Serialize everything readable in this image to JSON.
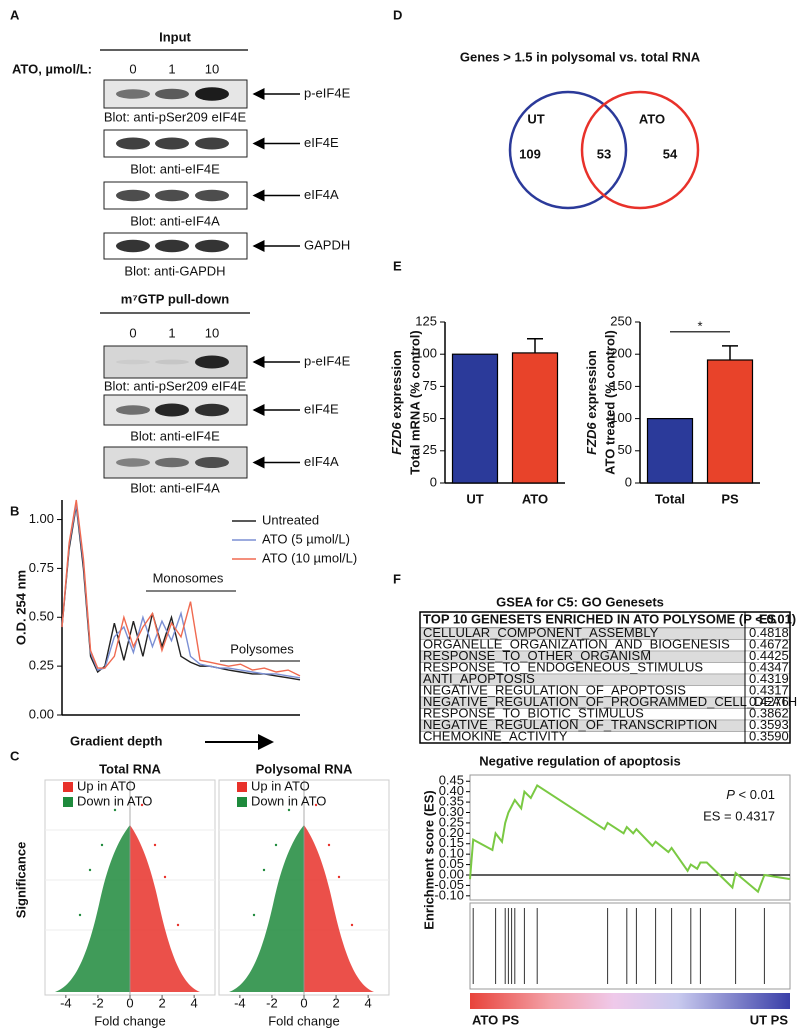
{
  "panel_labels": [
    "A",
    "B",
    "C",
    "D",
    "E",
    "F"
  ],
  "blots": {
    "input_title": "Input",
    "dose_label": "ATO, µmol/L:",
    "doses": [
      "0",
      "1",
      "10"
    ],
    "input": [
      {
        "target": "p-eIF4E",
        "caption": "Blot: anti-pSer209 eIF4E"
      },
      {
        "target": "eIF4E",
        "caption": "Blot: anti-eIF4E"
      },
      {
        "target": "eIF4A",
        "caption": "Blot: anti-eIF4A"
      },
      {
        "target": "GAPDH",
        "caption": "Blot: anti-GAPDH"
      }
    ],
    "pulldown_title": "m⁷GTP pull-down",
    "pulldown_doses": [
      "0",
      "1",
      "10"
    ],
    "pulldown": [
      {
        "target": "p-eIF4E",
        "caption": "Blot: anti-pSer209 eIF4E"
      },
      {
        "target": "eIF4E",
        "caption": "Blot: anti-eIF4E"
      },
      {
        "target": "eIF4A",
        "caption": "Blot: anti-eIF4A"
      }
    ]
  },
  "volcano": {
    "panels": [
      {
        "title": "Total RNA"
      },
      {
        "title": "Polysomal RNA"
      }
    ],
    "legend": [
      {
        "name": "Up in ATO",
        "color": "#e8312a"
      },
      {
        "name": "Down in ATO",
        "color": "#1e8a3c"
      }
    ],
    "ylabel": "Significance",
    "xlabel": "Fold change",
    "xlim": [
      -5.3,
      5.3
    ],
    "xticks": [
      -4,
      -2,
      0,
      2,
      4
    ]
  },
  "venn": {
    "title": "Genes > 1.5 in polysomal vs. total RNA",
    "sets": [
      {
        "name": "UT",
        "color": "#2b3a9a",
        "only": 109
      },
      {
        "name": "ATO",
        "color": "#e8312a",
        "only": 54
      }
    ],
    "both": 53
  },
  "gsea_table": {
    "title": "GSEA for C5: GO Genesets",
    "columns": [
      "TOP 10 GENESETS ENRICHED IN ATO POLYSOME (P < 0.01)",
      "ES"
    ],
    "rows": [
      {
        "name": "CELLULAR_COMPONENT_ASSEMBLY",
        "es": "0.4818",
        "color": "#222222"
      },
      {
        "name": "ORGANELLE_ORGANIZATION_AND_BIOGENESIS",
        "es": "0.4672",
        "color": "#222222"
      },
      {
        "name": "RESPONSE_TO_OTHER_ORGANISM",
        "es": "0.4425",
        "color": "#222222"
      },
      {
        "name": "RESPONSE_TO_ENDOGENEOUS_STIMULUS",
        "es": "0.4347",
        "color": "#222222"
      },
      {
        "name": "ANTI_APOPTOSIS",
        "es": "0.4319",
        "color": "#e8312a"
      },
      {
        "name": "NEGATIVE_REGULATION_OF_APOPTOSIS",
        "es": "0.4317",
        "color": "#e8312a"
      },
      {
        "name": "NEGATIVE_REGULATION_OF_PROGRAMMED_CELL_DEATH",
        "es": "0.4276",
        "color": "#e8312a"
      },
      {
        "name": "RESPONSE_TO_BIOTIC_STIMULUS",
        "es": "0.3862",
        "color": "#222222"
      },
      {
        "name": "NEGATIVE_REGULATION_OF_TRANSCRIPTION",
        "es": "0.3593",
        "color": "#222222"
      },
      {
        "name": "CHEMOKINE_ACTIVITY",
        "es": "0.3590",
        "color": "#222222"
      }
    ]
  },
  "chart_data": [
    {
      "type": "line",
      "ylabel": "O.D. 254 nm",
      "xlabel": "Gradient depth",
      "xlim": [
        0,
        1
      ],
      "ylim": [
        0,
        1.1
      ],
      "yticks": [
        {
          "value": 0,
          "label": "0.00"
        },
        0.25,
        {
          "value": 0.5,
          "label": "0.50"
        },
        0.75,
        {
          "value": 1,
          "label": "1.00"
        }
      ],
      "annotations": [
        "Monosomes",
        "Polysomes"
      ],
      "x": [
        0,
        0.03,
        0.06,
        0.09,
        0.12,
        0.15,
        0.18,
        0.22,
        0.26,
        0.3,
        0.34,
        0.38,
        0.42,
        0.46,
        0.5,
        0.54,
        0.58,
        0.62,
        0.66,
        0.7,
        0.75,
        0.8,
        0.85,
        0.9,
        0.95,
        1.0
      ],
      "series": [
        {
          "name": "Untreated",
          "color": "#222222",
          "values": [
            0.45,
            0.85,
            1.07,
            0.75,
            0.3,
            0.22,
            0.25,
            0.47,
            0.28,
            0.48,
            0.3,
            0.52,
            0.35,
            0.5,
            0.3,
            0.27,
            0.25,
            0.25,
            0.24,
            0.23,
            0.22,
            0.21,
            0.21,
            0.2,
            0.19,
            0.18
          ]
        },
        {
          "name": "ATO (5 µmol/L)",
          "color": "#7b8fd4",
          "values": [
            0.45,
            0.87,
            1.08,
            0.78,
            0.32,
            0.23,
            0.24,
            0.4,
            0.45,
            0.32,
            0.5,
            0.35,
            0.48,
            0.38,
            0.52,
            0.3,
            0.26,
            0.25,
            0.24,
            0.24,
            0.23,
            0.22,
            0.21,
            0.21,
            0.2,
            0.19
          ]
        },
        {
          "name": "ATO (10 µmol/L)",
          "color": "#f06a50",
          "values": [
            0.45,
            0.88,
            1.1,
            0.8,
            0.33,
            0.24,
            0.24,
            0.3,
            0.5,
            0.35,
            0.45,
            0.52,
            0.33,
            0.47,
            0.4,
            0.58,
            0.28,
            0.27,
            0.26,
            0.25,
            0.26,
            0.23,
            0.24,
            0.22,
            0.23,
            0.2
          ]
        }
      ]
    },
    {
      "type": "bar",
      "ylabel_italic": "FZD6",
      "ylabel": [
        "expression",
        "Total mRNA (% control)"
      ],
      "categories": [
        "UT",
        "ATO"
      ],
      "values": [
        100,
        101
      ],
      "errors": [
        null,
        11
      ],
      "colors": [
        "#2b3a9a",
        "#e8432a"
      ],
      "ylim": [
        0,
        125
      ],
      "yticks": [
        0,
        25,
        50,
        75,
        100,
        125
      ]
    },
    {
      "type": "bar",
      "ylabel_italic": "FZD6",
      "ylabel": [
        "expression",
        "ATO treated (% control)"
      ],
      "categories": [
        "Total",
        "PS"
      ],
      "values": [
        100,
        191
      ],
      "errors": [
        null,
        22
      ],
      "colors": [
        "#2b3a9a",
        "#e8432a"
      ],
      "ylim": [
        0,
        250
      ],
      "yticks": [
        0,
        50,
        100,
        150,
        200,
        250
      ],
      "annotation": "*"
    },
    {
      "type": "gsea",
      "title": "Negative regulation of apoptosis",
      "ylabel": "Enrichment score (ES)",
      "pvalue": {
        "symbol": "P",
        "text": " < 0.01"
      },
      "es_text": "ES = 0.4317",
      "color": "#7ac943",
      "xlim": [
        0,
        1
      ],
      "ylim": [
        -0.12,
        0.48
      ],
      "yticks": [
        0.45,
        {
          "value": 0.4,
          "label": "0.40"
        },
        0.35,
        {
          "value": 0.3,
          "label": "0.30"
        },
        0.25,
        {
          "value": 0.2,
          "label": "0.20"
        },
        0.15,
        {
          "value": 0.1,
          "label": "0.10"
        },
        0.05,
        {
          "value": 0,
          "label": "0.00"
        },
        -0.05,
        {
          "value": -0.1,
          "label": "-0.10"
        }
      ],
      "x": [
        0,
        0.01,
        0.07,
        0.08,
        0.1,
        0.11,
        0.12,
        0.13,
        0.14,
        0.16,
        0.17,
        0.19,
        0.21,
        0.42,
        0.43,
        0.48,
        0.49,
        0.51,
        0.52,
        0.57,
        0.58,
        0.62,
        0.63,
        0.68,
        0.69,
        0.71,
        0.72,
        0.74,
        0.82,
        0.83,
        0.9,
        0.92,
        1.0
      ],
      "values": [
        -0.02,
        0.17,
        0.12,
        0.2,
        0.16,
        0.25,
        0.3,
        0.33,
        0.36,
        0.32,
        0.4,
        0.37,
        0.43,
        0.22,
        0.25,
        0.2,
        0.23,
        0.2,
        0.22,
        0.14,
        0.16,
        0.11,
        0.13,
        0.02,
        0.05,
        0.03,
        0.06,
        0.06,
        -0.06,
        0.01,
        -0.08,
        0.0,
        -0.02
      ],
      "hits": [
        0.01,
        0.08,
        0.11,
        0.12,
        0.13,
        0.14,
        0.17,
        0.21,
        0.43,
        0.49,
        0.52,
        0.58,
        0.63,
        0.69,
        0.72,
        0.83,
        0.92
      ],
      "bar_labels": [
        {
          "text": "ATO PS",
          "color": "#e8312a"
        },
        {
          "text": "UT PS",
          "color": "#2b3a9a"
        }
      ]
    }
  ]
}
